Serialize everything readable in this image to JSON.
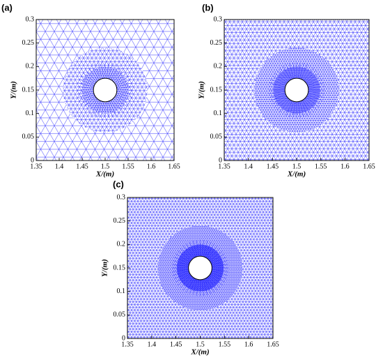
{
  "chart_data": [
    {
      "type": "mesh",
      "label": "(a)",
      "xlabel": "X/(m)",
      "ylabel": "Y/(m)",
      "color": "#1a1aff",
      "xlim": [
        1.35,
        1.65
      ],
      "xticks": [
        1.35,
        1.4,
        1.45,
        1.5,
        1.55,
        1.6,
        1.65
      ],
      "ylim": [
        0,
        0.3
      ],
      "yticks": [
        0,
        0.05,
        0.1,
        0.15,
        0.2,
        0.25,
        0.3
      ]
    },
    {
      "type": "mesh",
      "label": "(b)",
      "xlabel": "X/(m)",
      "ylabel": "Y/(m)",
      "color": "#1a1aff",
      "xlim": [
        1.35,
        1.65
      ],
      "xticks": [
        1.35,
        1.4,
        1.45,
        1.5,
        1.55,
        1.6,
        1.65
      ],
      "ylim": [
        0,
        0.3
      ],
      "yticks": [
        0,
        0.05,
        0.1,
        0.15,
        0.2,
        0.25,
        0.3
      ]
    },
    {
      "type": "mesh",
      "label": "(c)",
      "xlabel": "X/(m)",
      "ylabel": "Y/(m)",
      "color": "#1a1aff",
      "xlim": [
        1.35,
        1.65
      ],
      "xticks": [
        1.35,
        1.4,
        1.45,
        1.5,
        1.55,
        1.6,
        1.65
      ],
      "ylim": [
        0,
        0.3
      ],
      "yticks": [
        0,
        0.05,
        0.1,
        0.15,
        0.2,
        0.25,
        0.3
      ]
    }
  ]
}
